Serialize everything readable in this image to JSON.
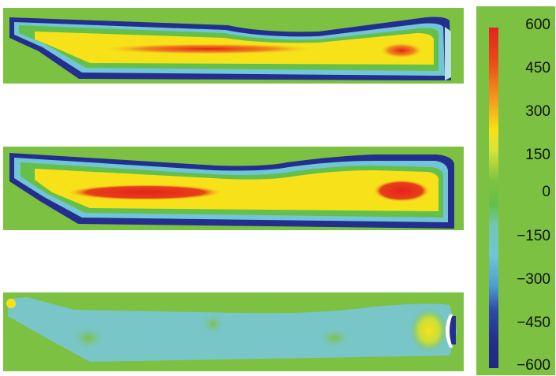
{
  "colorbar": {
    "ticks": [
      "600",
      "450",
      "300",
      "150",
      "0",
      "−150",
      "−300",
      "−450",
      "−600"
    ]
  },
  "colors": {
    "background_green": "#7cc142",
    "red": "#e3241b",
    "yellow": "#f7e21a",
    "cyan": "#71c5d6",
    "dark_blue": "#232e8e"
  }
}
